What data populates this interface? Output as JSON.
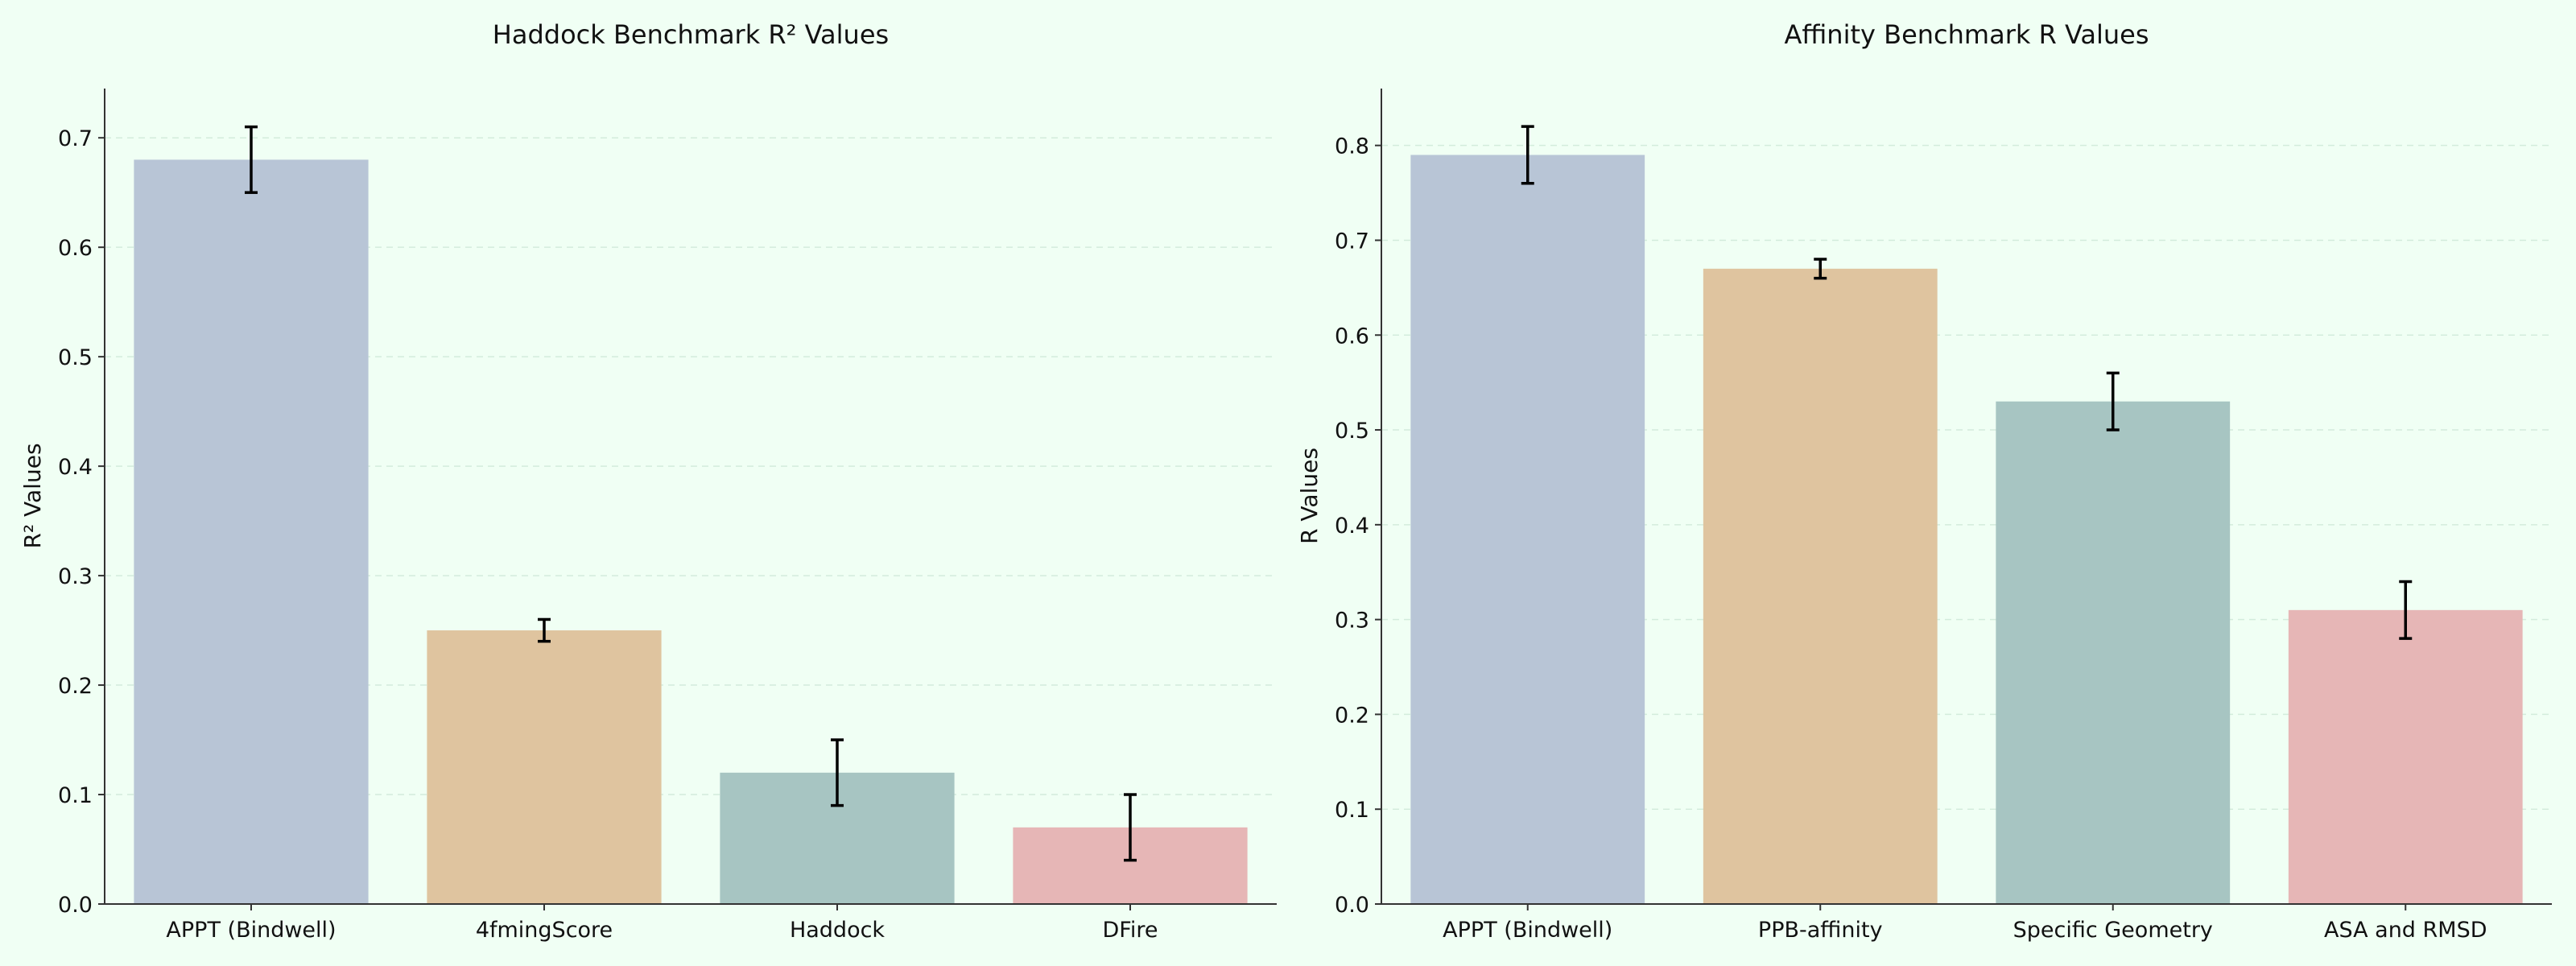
{
  "chart_data": [
    {
      "type": "bar",
      "title": "Haddock Benchmark R² Values",
      "xlabel": "",
      "ylabel": "R² Values",
      "categories": [
        "APPT (Bindwell)",
        "4fmingScore",
        "Haddock",
        "DFire"
      ],
      "values": [
        0.68,
        0.25,
        0.12,
        0.07
      ],
      "errors": [
        0.03,
        0.01,
        0.03,
        0.03
      ],
      "colors": [
        "#B8C5D6",
        "#DFC49F",
        "#A7C5C2",
        "#E6B6B6"
      ],
      "ylim": [
        0,
        0.745
      ],
      "yticks": [
        0.0,
        0.1,
        0.2,
        0.3,
        0.4,
        0.5,
        0.6,
        0.7
      ],
      "ytick_labels": [
        "0.0",
        "0.1",
        "0.2",
        "0.3",
        "0.4",
        "0.5",
        "0.6",
        "0.7"
      ],
      "grid": "y-dashed"
    },
    {
      "type": "bar",
      "title": "Affinity Benchmark R Values",
      "xlabel": "",
      "ylabel": "R Values",
      "categories": [
        "APPT (Bindwell)",
        "PPB-affinity",
        "Specific Geometry",
        "ASA and RMSD"
      ],
      "values": [
        0.79,
        0.67,
        0.53,
        0.31
      ],
      "errors": [
        0.03,
        0.01,
        0.03,
        0.03
      ],
      "colors": [
        "#B8C5D6",
        "#DFC49F",
        "#A7C5C2",
        "#E6B6B6"
      ],
      "ylim": [
        0,
        0.86
      ],
      "yticks": [
        0.0,
        0.1,
        0.2,
        0.3,
        0.4,
        0.5,
        0.6,
        0.7,
        0.8
      ],
      "ytick_labels": [
        "0.0",
        "0.1",
        "0.2",
        "0.3",
        "0.4",
        "0.5",
        "0.6",
        "0.7",
        "0.8"
      ],
      "grid": "y-dashed"
    }
  ]
}
